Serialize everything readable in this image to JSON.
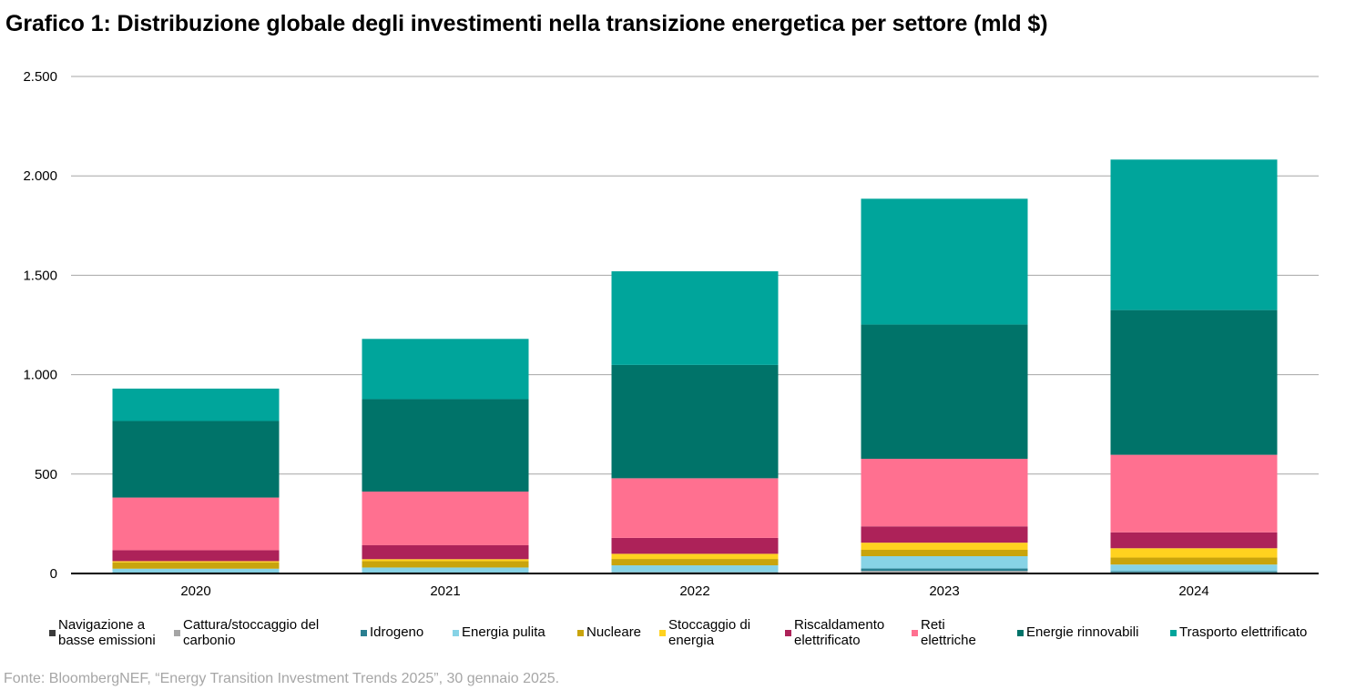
{
  "title": "Grafico 1: Distribuzione globale degli investimenti nella transizione energetica per settore (mld $)",
  "source": "Fonte: BloombergNEF, “Energy Transition Investment Trends 2025”, 30 gennaio 2025.",
  "chart_data": {
    "type": "bar",
    "stacked": true,
    "title": "Grafico 1: Distribuzione globale degli investimenti nella transizione energetica per settore (mld $)",
    "xlabel": "",
    "ylabel": "",
    "ylim": [
      0,
      2500
    ],
    "yticks": [
      0,
      500,
      1000,
      1500,
      2000,
      2500
    ],
    "ytick_labels": [
      "0",
      "500",
      "1.000",
      "1.500",
      "2.000",
      "2.500"
    ],
    "grid": true,
    "legend_position": "bottom",
    "categories": [
      "2020",
      "2021",
      "2022",
      "2023",
      "2024"
    ],
    "series": [
      {
        "name": "Navigazione a basse emissioni",
        "color": "#3b3b3b",
        "values": [
          1,
          1,
          2,
          5,
          3
        ]
      },
      {
        "name": "Cattura/stoccaggio del carbonio",
        "color": "#a5a5a5",
        "values": [
          3,
          2,
          4,
          8,
          3
        ]
      },
      {
        "name": "Idrogeno",
        "color": "#2a7f90",
        "values": [
          2,
          3,
          2,
          12,
          6
        ]
      },
      {
        "name": "Energia pulita",
        "color": "#87d3e6",
        "values": [
          18,
          24,
          33,
          62,
          33
        ]
      },
      {
        "name": "Nucleare",
        "color": "#c9a40c",
        "values": [
          32,
          32,
          32,
          32,
          35
        ]
      },
      {
        "name": "Stoccaggio di energia",
        "color": "#ffd21f",
        "values": [
          6,
          10,
          26,
          36,
          47
        ]
      },
      {
        "name": "Riscaldamento elettrificato",
        "color": "#ad2259",
        "values": [
          55,
          70,
          80,
          82,
          80
        ]
      },
      {
        "name": "Reti elettriche",
        "color": "#ff7090",
        "values": [
          265,
          270,
          300,
          340,
          390
        ]
      },
      {
        "name": "Energie rinnovabili",
        "color": "#007369",
        "values": [
          385,
          465,
          570,
          675,
          728
        ]
      },
      {
        "name": "Trasporto elettrificato",
        "color": "#00a59b",
        "values": [
          163,
          303,
          471,
          633,
          757
        ]
      }
    ]
  },
  "legend": [
    {
      "lines": [
        "Navigazione a",
        "basse emissioni"
      ],
      "color": "#3b3b3b"
    },
    {
      "lines": [
        "Cattura/stoccaggio del",
        "carbonio"
      ],
      "color": "#a5a5a5"
    },
    {
      "lines": [
        "Idrogeno"
      ],
      "color": "#2a7f90"
    },
    {
      "lines": [
        "Energia pulita"
      ],
      "color": "#87d3e6"
    },
    {
      "lines": [
        "Nucleare"
      ],
      "color": "#c9a40c"
    },
    {
      "lines": [
        "Stoccaggio di",
        "energia"
      ],
      "color": "#ffd21f"
    },
    {
      "lines": [
        "Riscaldamento",
        "elettrificato"
      ],
      "color": "#ad2259"
    },
    {
      "lines": [
        "Reti",
        "elettriche"
      ],
      "color": "#ff7090"
    },
    {
      "lines": [
        "Energie rinnovabili"
      ],
      "color": "#007369"
    },
    {
      "lines": [
        "Trasporto elettrificato"
      ],
      "color": "#00a59b"
    }
  ]
}
